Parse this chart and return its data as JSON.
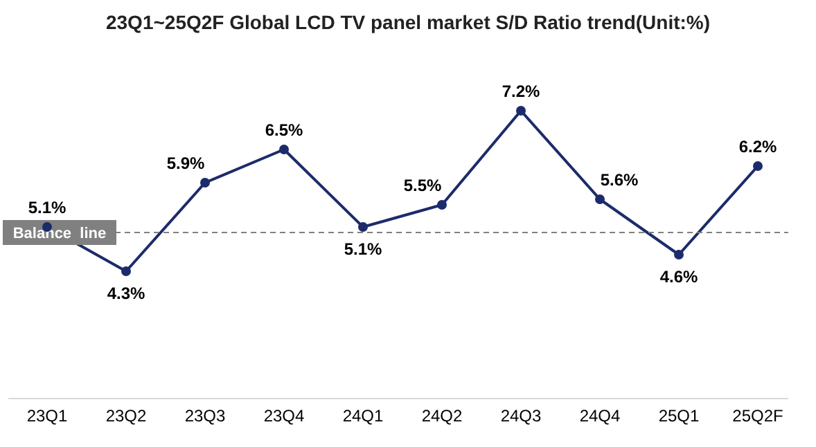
{
  "chart_data": {
    "type": "line",
    "title": "23Q1~25Q2F Global LCD TV panel market S/D Ratio trend(Unit:%)",
    "categories": [
      "23Q1",
      "23Q2",
      "23Q3",
      "23Q4",
      "24Q1",
      "24Q2",
      "24Q3",
      "24Q4",
      "25Q1",
      "25Q2F"
    ],
    "values": [
      5.1,
      4.3,
      5.9,
      6.5,
      5.1,
      5.5,
      7.2,
      5.6,
      4.6,
      6.2
    ],
    "value_labels": [
      "5.1%",
      "4.3%",
      "5.9%",
      "6.5%",
      "5.1%",
      "5.5%",
      "7.2%",
      "5.6%",
      "4.6%",
      "6.2%"
    ],
    "color": "#1c2b6b",
    "marker": "circle",
    "line_style": "solid",
    "tick_labels": "x",
    "grid": false,
    "legend": false,
    "ref_lines": [
      {
        "axis": "y",
        "value": 5.0,
        "label": "Balance  line",
        "color": "#808080",
        "line_style": "dashed"
      }
    ]
  }
}
